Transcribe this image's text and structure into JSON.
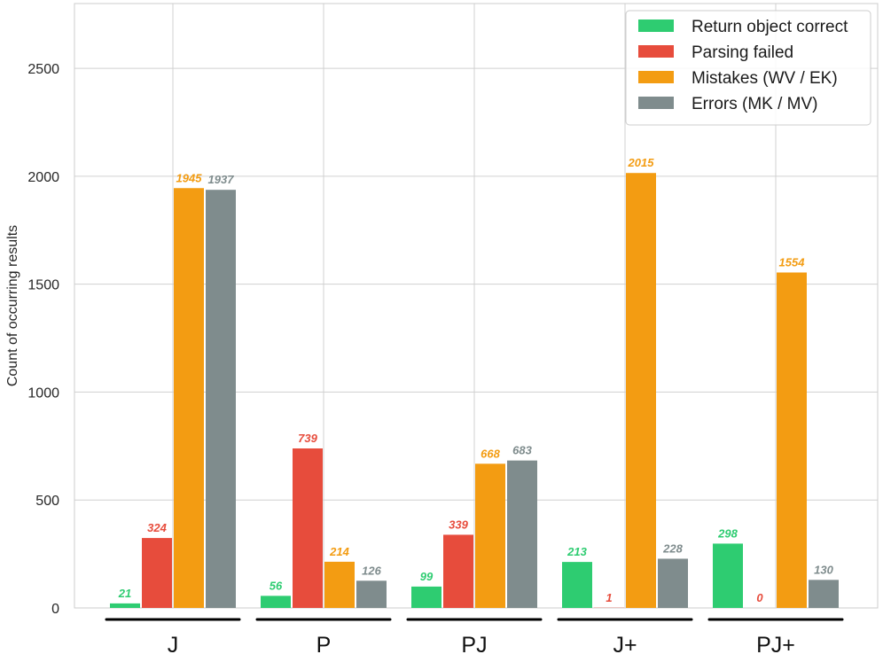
{
  "chart_data": {
    "type": "bar",
    "categories": [
      "J",
      "P",
      "PJ",
      "J+",
      "PJ+"
    ],
    "ylabel": "Count of occurring results",
    "xlabel": "",
    "ylim": [
      0,
      2800
    ],
    "yticks": [
      0,
      500,
      1000,
      1500,
      2000,
      2500
    ],
    "grid": true,
    "legend_position": "top-right",
    "series": [
      {
        "name": "Return object correct",
        "color": "#2ecc71",
        "values": [
          21,
          56,
          99,
          213,
          298
        ]
      },
      {
        "name": "Parsing failed",
        "color": "#e74c3c",
        "values": [
          324,
          739,
          339,
          1,
          0
        ]
      },
      {
        "name": "Mistakes (WV / EK)",
        "color": "#f39c12",
        "values": [
          1945,
          214,
          668,
          2015,
          1554
        ]
      },
      {
        "name": "Errors (MK / MV)",
        "color": "#7f8c8d",
        "values": [
          1937,
          126,
          683,
          228,
          130
        ]
      }
    ]
  }
}
